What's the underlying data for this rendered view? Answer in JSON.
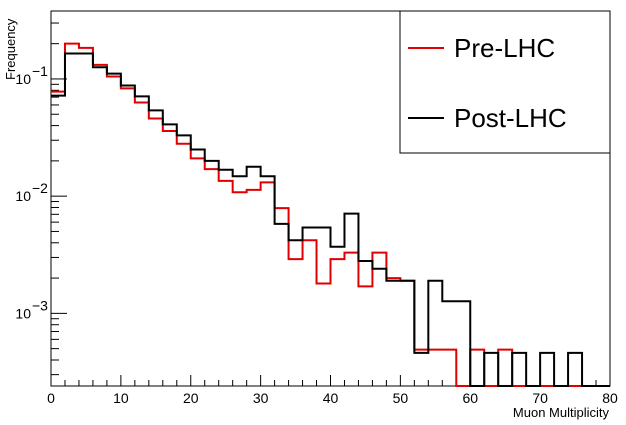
{
  "chart_data": {
    "type": "line",
    "style": "step-histogram",
    "title": "",
    "xlabel": "Muon Multiplicity",
    "ylabel": "Frequency",
    "xlim": [
      0,
      80
    ],
    "ylim": [
      0.00024,
      0.38
    ],
    "yscale": "log",
    "grid": false,
    "legend_position": "top-right",
    "x_ticks": [
      "0",
      "10",
      "20",
      "30",
      "40",
      "50",
      "60",
      "70",
      "80"
    ],
    "y_ticks": [
      {
        "value": 0.1,
        "base": "10",
        "exp": "−1"
      },
      {
        "value": 0.01,
        "base": "10",
        "exp": "−2"
      },
      {
        "value": 0.001,
        "base": "10",
        "exp": "−3"
      }
    ],
    "bin_edges": [
      0,
      2,
      4,
      6,
      8,
      10,
      12,
      14,
      16,
      18,
      20,
      22,
      24,
      26,
      28,
      30,
      32,
      34,
      36,
      38,
      40,
      42,
      44,
      46,
      48,
      50,
      52,
      54,
      56,
      58,
      60,
      62,
      64,
      66,
      68,
      70,
      72,
      74,
      76,
      78,
      80
    ],
    "series": [
      {
        "name": "Pre-LHC",
        "color": "#e00000",
        "values": [
          0.078,
          0.2,
          0.184,
          0.132,
          0.105,
          0.083,
          0.063,
          0.046,
          0.036,
          0.028,
          0.021,
          0.017,
          0.0135,
          0.0108,
          0.0113,
          0.0131,
          0.0079,
          0.0029,
          0.0042,
          0.0018,
          0.0029,
          0.0033,
          0.0017,
          0.0033,
          0.002,
          0.0019,
          0.00049,
          0.00049,
          0.00049,
          0,
          0.00049,
          0,
          0.00049,
          0,
          0,
          0,
          0,
          0,
          0,
          0
        ]
      },
      {
        "name": "Post-LHC",
        "color": "#000000",
        "values": [
          0.072,
          0.165,
          0.165,
          0.126,
          0.111,
          0.088,
          0.071,
          0.054,
          0.041,
          0.033,
          0.025,
          0.02,
          0.0168,
          0.0148,
          0.0178,
          0.0148,
          0.0058,
          0.0042,
          0.0054,
          0.0054,
          0.0037,
          0.0071,
          0.0028,
          0.0024,
          0.0019,
          0.0019,
          0.00046,
          0.0019,
          0.00127,
          0.00127,
          0,
          0.00046,
          0,
          0.00046,
          0,
          0.00046,
          0,
          0.00046,
          0,
          0
        ]
      }
    ]
  }
}
